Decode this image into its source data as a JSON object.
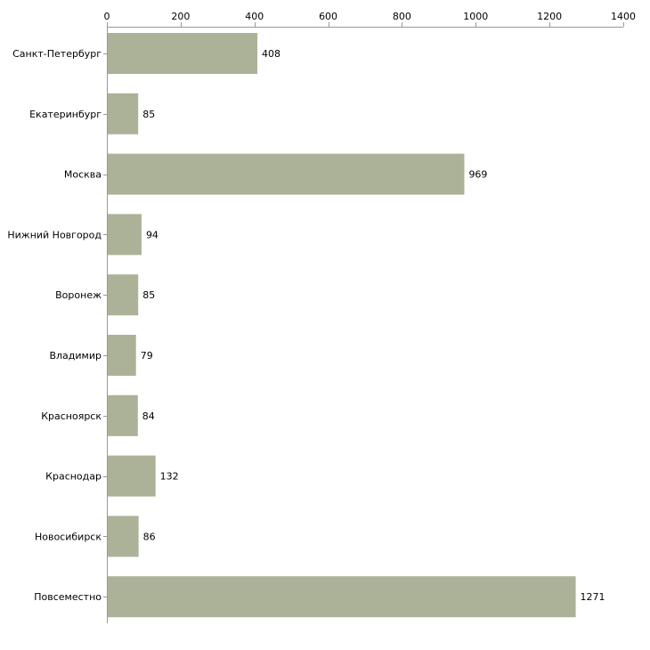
{
  "chart_data": {
    "type": "bar",
    "orientation": "horizontal",
    "title": "",
    "xlabel": "",
    "ylabel": "",
    "xlim": [
      0,
      1400
    ],
    "x_ticks": [
      0,
      200,
      400,
      600,
      800,
      1000,
      1200,
      1400
    ],
    "x_tick_labels": [
      "0",
      "200",
      "400",
      "600",
      "800",
      "1000",
      "1200",
      "1400"
    ],
    "x_axis_position": "top",
    "grid": false,
    "legend": "none",
    "categories": [
      "Санкт-Петербург",
      "Екатеринбург",
      "Москва",
      "Нижний Новгород",
      "Воронеж",
      "Владимир",
      "Красноярск",
      "Краснодар",
      "Новосибирск",
      "Повсеместно"
    ],
    "values": [
      408,
      85,
      969,
      94,
      85,
      79,
      84,
      132,
      86,
      1271
    ],
    "value_labels": [
      "408",
      "85",
      "969",
      "94",
      "85",
      "79",
      "84",
      "132",
      "86",
      "1271"
    ],
    "colors": {
      "bar": "#acb297",
      "axis": "#999999",
      "text": "#000000"
    }
  }
}
